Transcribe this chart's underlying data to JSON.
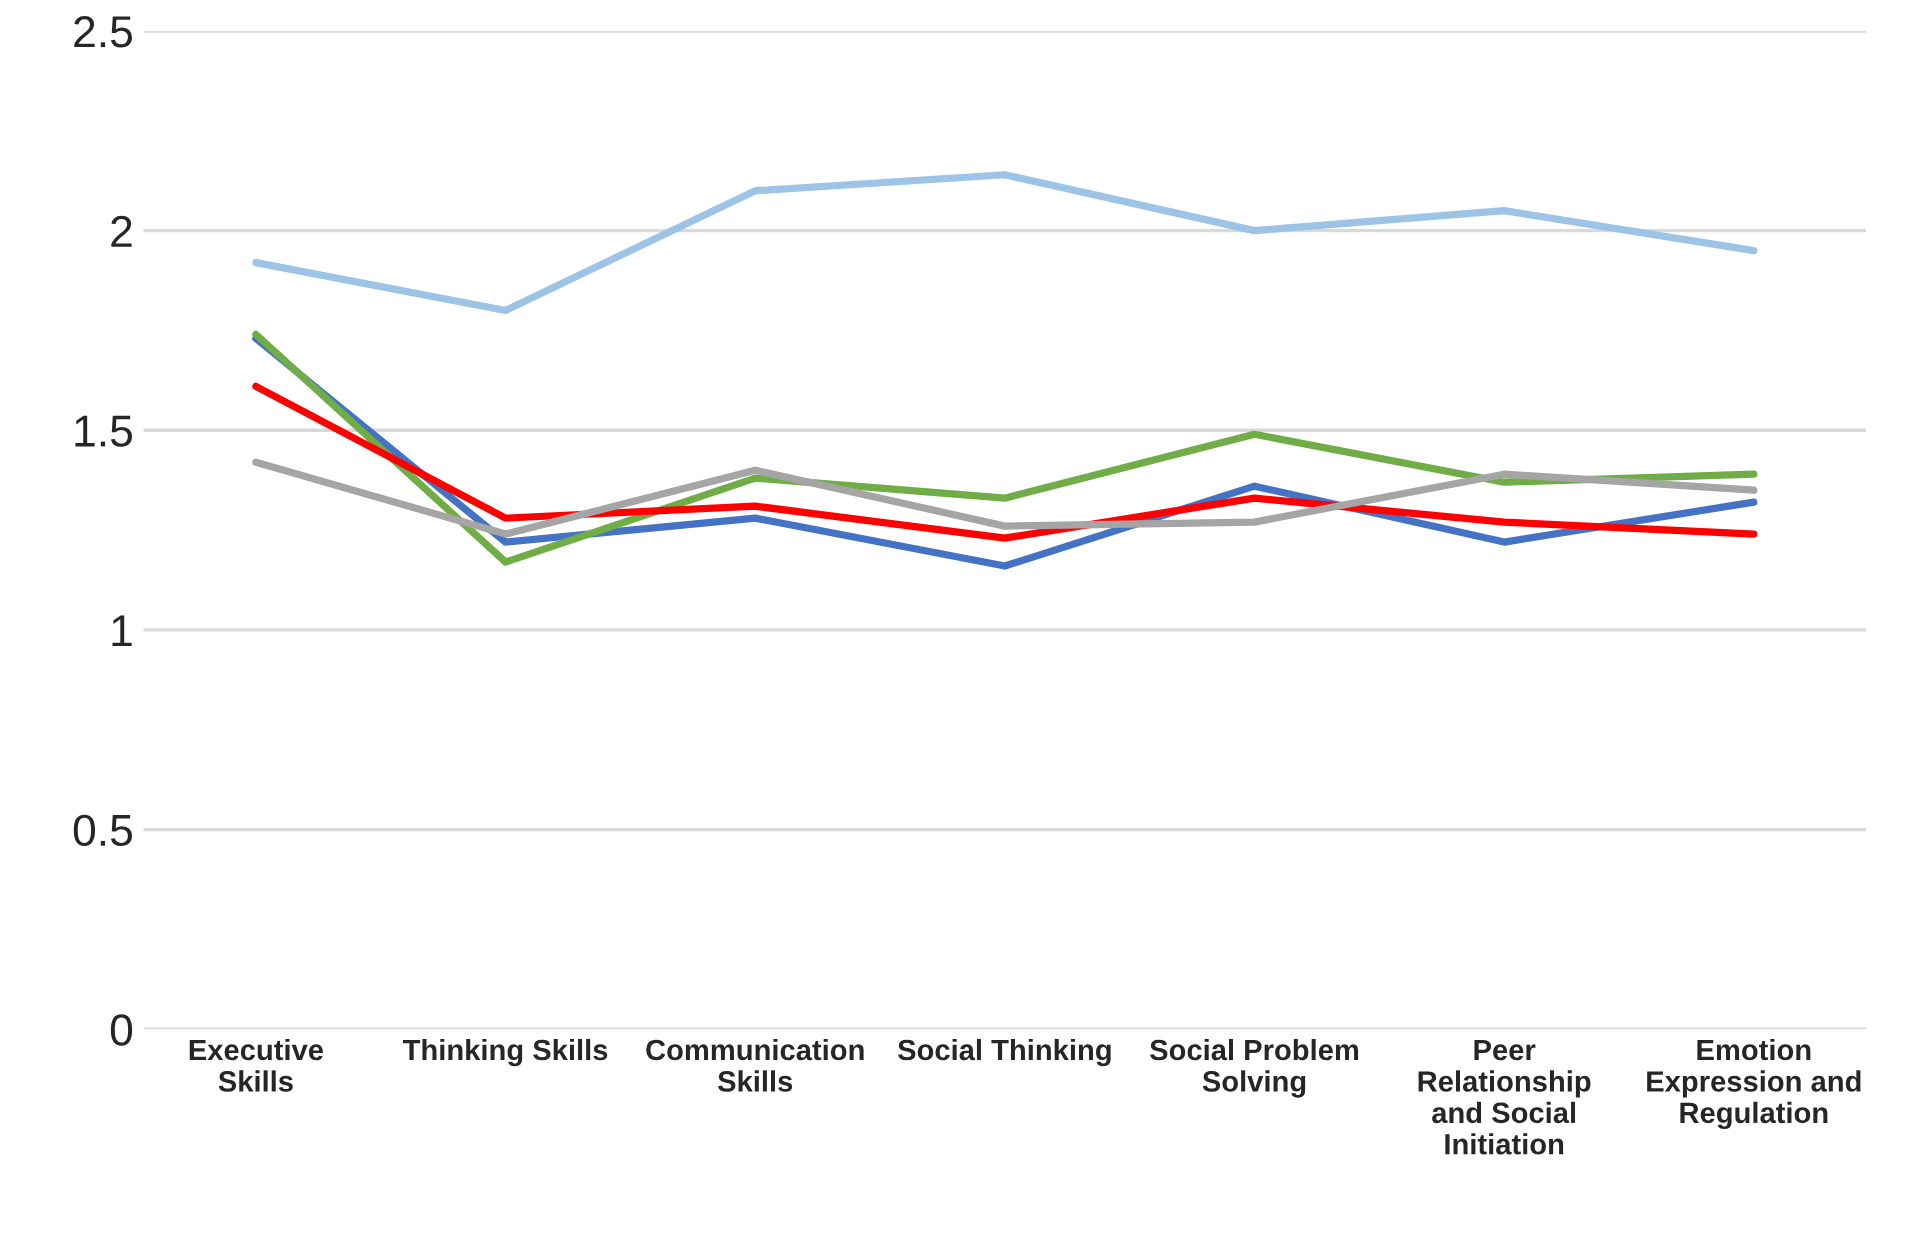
{
  "chart_data": {
    "type": "line",
    "categories": [
      "Executive Skills",
      "Thinking Skills",
      "Communication Skills",
      "Social Thinking",
      "Social Problem Solving",
      "Peer Relationship and Social Initiation",
      "Emotion Expression and Regulation"
    ],
    "series": [
      {
        "color": "#9dc3e6",
        "values": [
          1.92,
          1.8,
          2.1,
          2.14,
          2.0,
          2.05,
          1.95
        ]
      },
      {
        "color": "#4472c4",
        "values": [
          1.73,
          1.22,
          1.28,
          1.16,
          1.36,
          1.22,
          1.32
        ]
      },
      {
        "color": "#70ad47",
        "values": [
          1.74,
          1.17,
          1.38,
          1.33,
          1.49,
          1.37,
          1.39
        ]
      },
      {
        "color": "#ff0000",
        "values": [
          1.61,
          1.28,
          1.31,
          1.23,
          1.33,
          1.27,
          1.24
        ]
      },
      {
        "color": "#a5a5a5",
        "values": [
          1.42,
          1.24,
          1.4,
          1.26,
          1.27,
          1.39,
          1.35
        ]
      }
    ],
    "ylim": [
      0,
      2.5
    ],
    "yticks": [
      0,
      0.5,
      1,
      1.5,
      2,
      2.5
    ],
    "grid": "y",
    "marker": "none",
    "line_style": "solid"
  }
}
